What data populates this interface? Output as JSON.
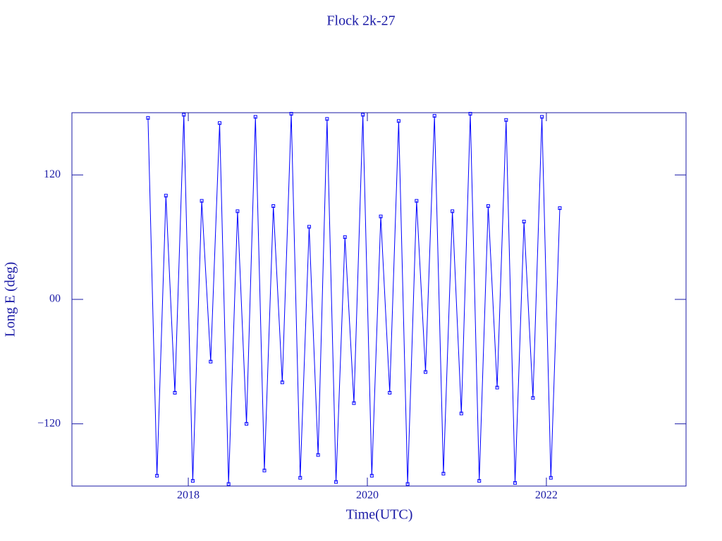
{
  "chart_data": {
    "type": "line",
    "title": "Flock 2k-27",
    "x_label": "Time(UTC)",
    "y_label": "Long E (deg)",
    "color": "#0000ff",
    "xlim": [
      2016.7,
      2023.56
    ],
    "xticks": [
      2018,
      2020,
      2022
    ],
    "ylim": [
      -180,
      180
    ],
    "yticks": [
      {
        "value": -120,
        "label": "−120"
      },
      {
        "value": 0,
        "label": "00"
      },
      120
    ],
    "x": [
      2017.55,
      2017.65,
      2017.75,
      2017.85,
      2017.95,
      2018.05,
      2018.15,
      2018.25,
      2018.35,
      2018.45,
      2018.55,
      2018.65,
      2018.75,
      2018.85,
      2018.95,
      2019.05,
      2019.15,
      2019.25,
      2019.35,
      2019.45,
      2019.55,
      2019.65,
      2019.75,
      2019.85,
      2019.95,
      2020.05,
      2020.15,
      2020.25,
      2020.35,
      2020.45,
      2020.55,
      2020.65,
      2020.75,
      2020.85,
      2020.95,
      2021.05,
      2021.15,
      2021.25,
      2021.35,
      2021.45,
      2021.55,
      2021.65,
      2021.75,
      2021.85,
      2021.95,
      2022.05,
      2022.15
    ],
    "values": [
      175,
      -170,
      100,
      -90,
      178,
      -175,
      95,
      -60,
      170,
      -178,
      85,
      -120,
      176,
      -165,
      90,
      -80,
      179,
      -172,
      70,
      -150,
      174,
      -176,
      60,
      -100,
      178,
      -170,
      80,
      -90,
      172,
      -178,
      95,
      -70,
      177,
      -168,
      85,
      -110,
      179,
      -175,
      90,
      -85,
      173,
      -177,
      75,
      -95,
      176,
      -172,
      88
    ]
  }
}
